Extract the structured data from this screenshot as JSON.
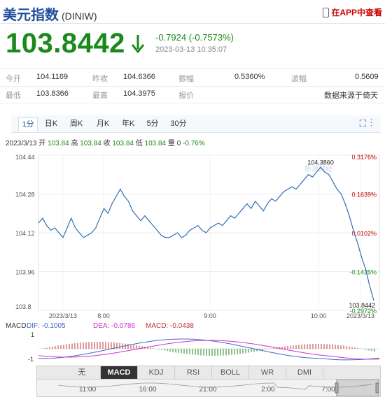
{
  "header": {
    "title": "美元指数",
    "code": "(DINIW)",
    "app_link": "在APP中查看",
    "price": "103.8442",
    "change": "-0.7924 (-0.7573%)",
    "datetime": "2023-03-13 10:35:07"
  },
  "stats": {
    "row1": [
      {
        "label": "今开",
        "value": "104.1169"
      },
      {
        "label": "昨收",
        "value": "104.6366"
      },
      {
        "label": "振幅",
        "value": "0.5360%"
      },
      {
        "label": "波幅",
        "value": "0.5609"
      }
    ],
    "row2": [
      {
        "label": "最低",
        "value": "103.8366"
      },
      {
        "label": "最高",
        "value": "104.3975"
      },
      {
        "label": "报价",
        "value": ""
      },
      {
        "label": "",
        "value": "数据来源于倚天"
      }
    ]
  },
  "tabs": [
    "1分",
    "日K",
    "周K",
    "月K",
    "年K",
    "5分",
    "30分"
  ],
  "active_tab": "1分",
  "info_bar": {
    "date": "2023/3/13",
    "open_label": "开",
    "open": "103.84",
    "high_label": "高",
    "high": "103.84",
    "close_label": "收",
    "close": "103.84",
    "low_label": "低",
    "low": "103.84",
    "volume_label": "量",
    "volume": "0",
    "change": "-0.76%"
  },
  "chart_data": {
    "type": "line",
    "title": "",
    "y_ticks": [
      "104.44",
      "104.28",
      "104.12",
      "103.96",
      "103.8"
    ],
    "right_ticks": [
      "0.3176%",
      "0.1639%",
      "0.0102%",
      "-0.1435%",
      "-0.2972%"
    ],
    "x_ticks": [
      "2023/3/13",
      "8:00",
      "9:00",
      "10:00",
      "2023/3/13"
    ],
    "ylim": [
      103.8,
      104.44
    ],
    "high_label": "104.3860",
    "last_label": "103.8442",
    "watermark": "新浪财经",
    "values": [
      104.16,
      104.18,
      104.15,
      104.13,
      104.14,
      104.12,
      104.1,
      104.14,
      104.18,
      104.14,
      104.12,
      104.1,
      104.11,
      104.12,
      104.14,
      104.18,
      104.22,
      104.2,
      104.24,
      104.27,
      104.3,
      104.27,
      104.25,
      104.21,
      104.19,
      104.17,
      104.19,
      104.17,
      104.15,
      104.13,
      104.11,
      104.1,
      104.1,
      104.11,
      104.12,
      104.1,
      104.11,
      104.13,
      104.14,
      104.15,
      104.13,
      104.12,
      104.14,
      104.15,
      104.16,
      104.15,
      104.17,
      104.19,
      104.18,
      104.2,
      104.22,
      104.24,
      104.22,
      104.25,
      104.23,
      104.21,
      104.24,
      104.26,
      104.25,
      104.27,
      104.29,
      104.3,
      104.31,
      104.3,
      104.32,
      104.34,
      104.36,
      104.35,
      104.37,
      104.39,
      104.37,
      104.36,
      104.33,
      104.3,
      104.28,
      104.24,
      104.19,
      104.13,
      104.08,
      104.02,
      103.97,
      103.9,
      103.84
    ]
  },
  "macd": {
    "title": "MACD",
    "dif_label": "DIF:",
    "dif": "-0.1005",
    "dea_label": "DEA:",
    "dea": "-0.0786",
    "macd_label": "MACD:",
    "macd": "-0.0438",
    "y_ticks": [
      "1",
      "-1"
    ],
    "dif_color": "#4466cc",
    "dea_color": "#cc33cc",
    "macd_color": "#c03030"
  },
  "indicator_tabs": [
    "无",
    "MACD",
    "KDJ",
    "RSI",
    "BOLL",
    "WR",
    "DMI"
  ],
  "active_indicator": "MACD",
  "nav_times": [
    "11:00",
    "16:00",
    "21:00",
    "2:00",
    "7:00"
  ],
  "colors": {
    "down": "#1a8a1a",
    "up": "#c00000",
    "line": "#2f6fb5",
    "title": "#1f4e9c"
  }
}
